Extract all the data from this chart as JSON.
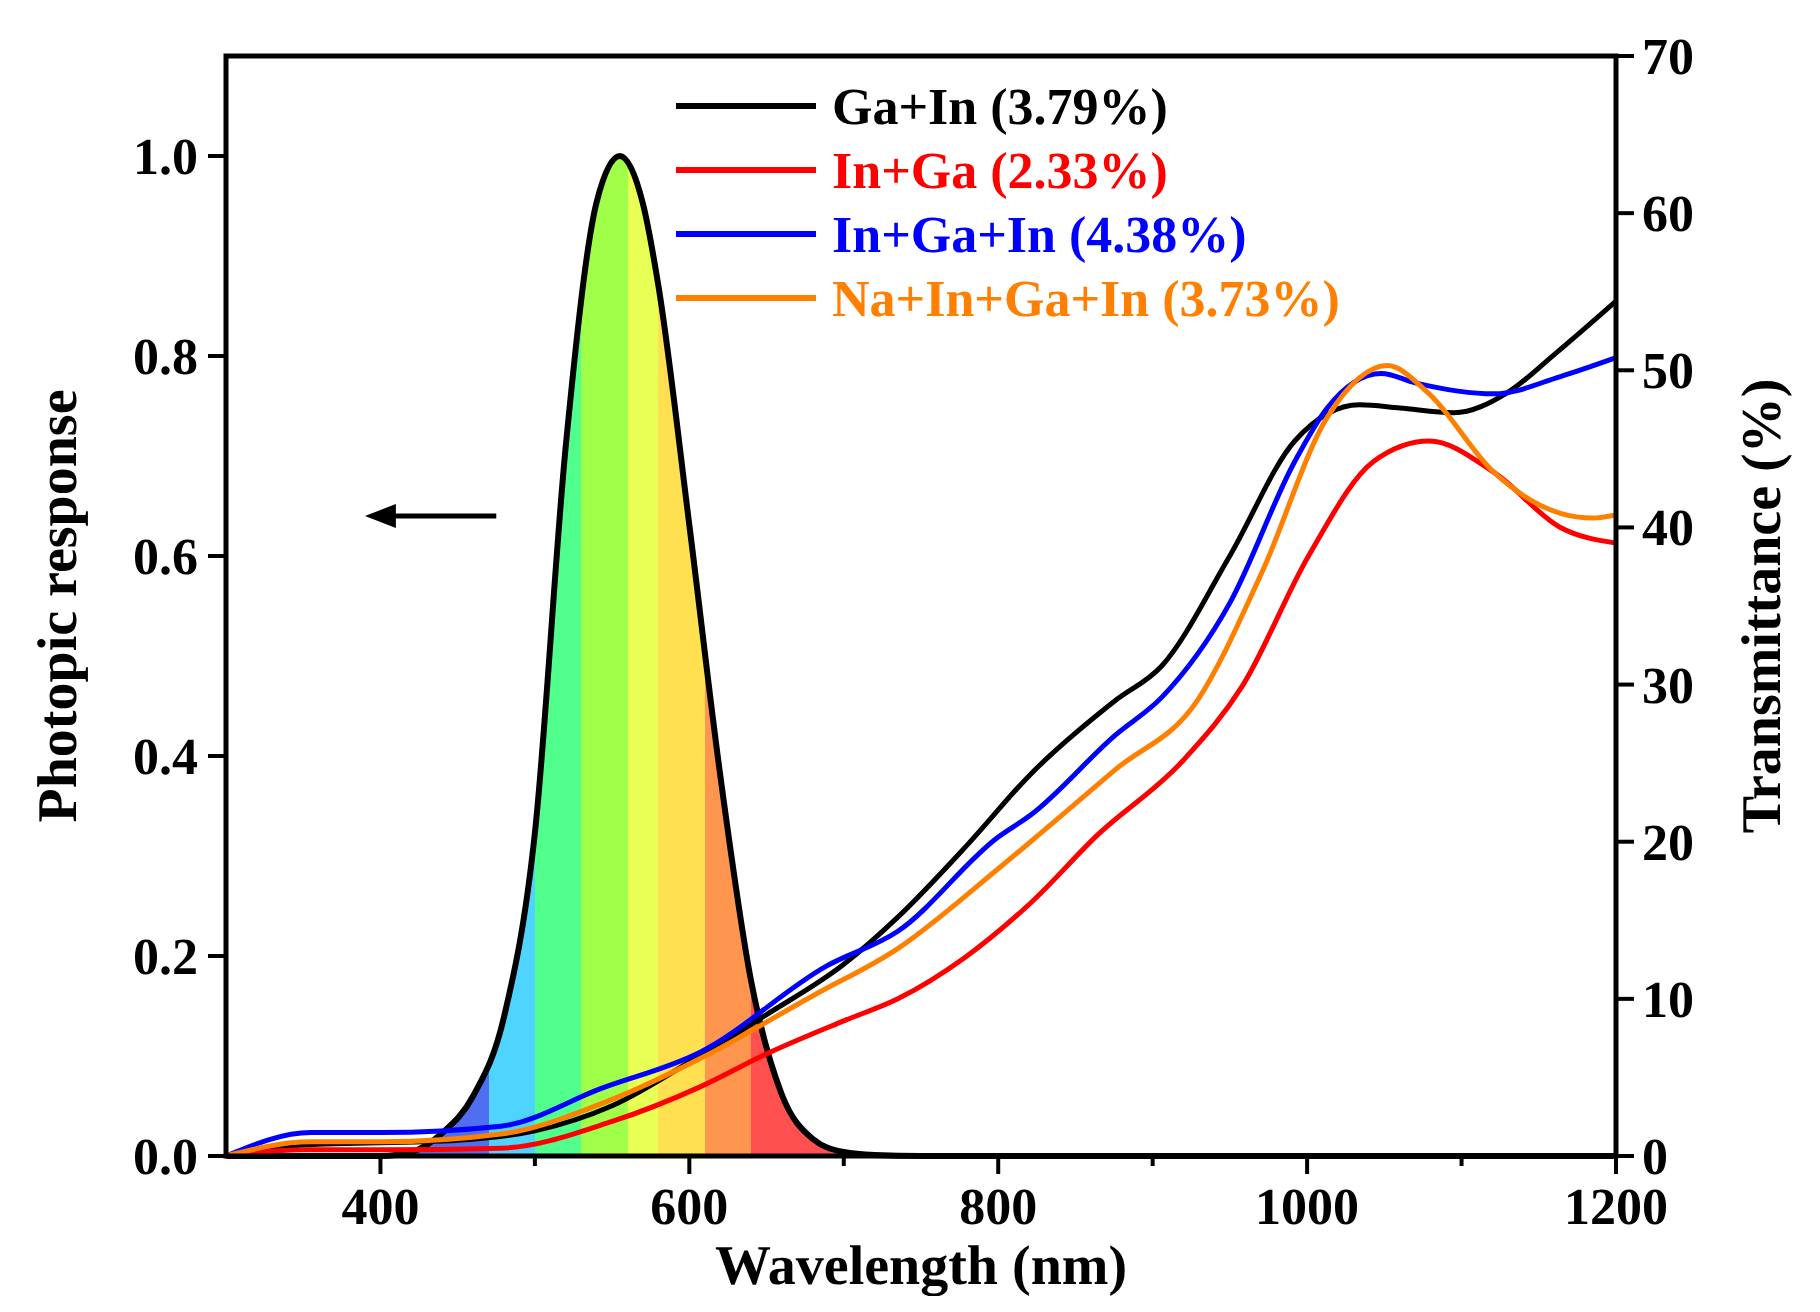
{
  "chart_data": {
    "type": "line",
    "xlabel": "Wavelength (nm)",
    "ylabel": "Photopic response",
    "y2label": "Transmittance (%)",
    "xlim": [
      300,
      1200
    ],
    "xticks": [
      400,
      {
        "value": 500,
        "label": null
      },
      600,
      {
        "value": 700,
        "label": null
      },
      800,
      {
        "value": 900,
        "label": null
      },
      1000,
      {
        "value": 1100,
        "label": null
      },
      1200
    ],
    "ylim": [
      0,
      1.1
    ],
    "yticks": [
      {
        "value": 0,
        "label": "0.0"
      },
      {
        "value": 0.2,
        "label": "0.2"
      },
      {
        "value": 0.4,
        "label": "0.4"
      },
      {
        "value": 0.6,
        "label": "0.6"
      },
      {
        "value": 0.8,
        "label": "0.8"
      },
      {
        "value": 1,
        "label": "1.0"
      }
    ],
    "y2lim": [
      0,
      70
    ],
    "y2ticks": [
      0,
      10,
      20,
      30,
      40,
      50,
      60,
      70
    ],
    "legend": "top",
    "grid": false,
    "marker": "none",
    "line_style": "solid",
    "series": [
      {
        "type": "area",
        "color": "#000000",
        "x": [
          300,
          380,
          400,
          420,
          440,
          460,
          480,
          500,
          520,
          540,
          555,
          570,
          580,
          600,
          620,
          640,
          660,
          680,
          700,
          720,
          750,
          1200
        ],
        "values": [
          0,
          0,
          0,
          0.004,
          0.023,
          0.06,
          0.139,
          0.323,
          0.71,
          0.954,
          1.0,
          0.952,
          0.87,
          0.631,
          0.381,
          0.175,
          0.061,
          0.017,
          0.004,
          0.001,
          0,
          0
        ]
      },
      {
        "name": "Ga+In (3.79%)",
        "color": "#000000",
        "axis": "y2",
        "x": [
          300,
          350,
          450,
          500,
          550,
          607,
          650,
          700,
          735,
          780,
          821,
          876,
          906,
          950,
          992,
          1034,
          1060,
          1095,
          1130,
          1160,
          1200
        ],
        "values": [
          0,
          0.7,
          1.0,
          1.6,
          3.2,
          6.4,
          9,
          12.2,
          15.2,
          19.8,
          24.3,
          29,
          31.2,
          38.2,
          45.5,
          47.8,
          47.6,
          47.3,
          48.6,
          51,
          54.4
        ]
      },
      {
        "name": "In+Ga (2.33%)",
        "color": "#ff0000",
        "axis": "y2",
        "x": [
          300,
          350,
          400,
          478,
          550,
          607,
          650,
          700,
          735,
          778,
          821,
          864,
          920,
          958,
          1001,
          1043,
          1079,
          1121,
          1164,
          1200
        ],
        "values": [
          0,
          0.4,
          0.4,
          0.5,
          2.2,
          4.4,
          6.5,
          8.6,
          10,
          12.6,
          16.1,
          20.4,
          25.2,
          29.9,
          38.2,
          44.2,
          45.5,
          43.5,
          40,
          39
        ]
      },
      {
        "name": "In+Ga+In (4.38%)",
        "color": "#0000ff",
        "axis": "y2",
        "x": [
          300,
          355,
          400,
          478,
          543,
          607,
          689,
          735,
          800,
          821,
          876,
          906,
          950,
          992,
          1013,
          1048,
          1070,
          1121,
          1164,
          1200
        ],
        "values": [
          0,
          1.5,
          1.5,
          1.9,
          4.3,
          6.6,
          12.1,
          14.3,
          20.3,
          21.7,
          26.8,
          29.2,
          35.2,
          44.2,
          47.6,
          49.8,
          49.2,
          48.5,
          49.6,
          50.8
        ]
      },
      {
        "name": "Na+In+Ga+In (3.73%)",
        "color": "#ff8000",
        "axis": "y2",
        "x": [
          300,
          355,
          400,
          478,
          550,
          607,
          680,
          735,
          799,
          821,
          876,
          929,
          971,
          1013,
          1052,
          1078,
          1121,
          1164,
          1185,
          1200
        ],
        "values": [
          0,
          0.9,
          0.9,
          1.4,
          3.6,
          6.2,
          10.2,
          13.2,
          18.2,
          20,
          24.6,
          29,
          37.2,
          47,
          50.3,
          48.6,
          43.5,
          40.9,
          40.6,
          40.8
        ]
      }
    ]
  }
}
